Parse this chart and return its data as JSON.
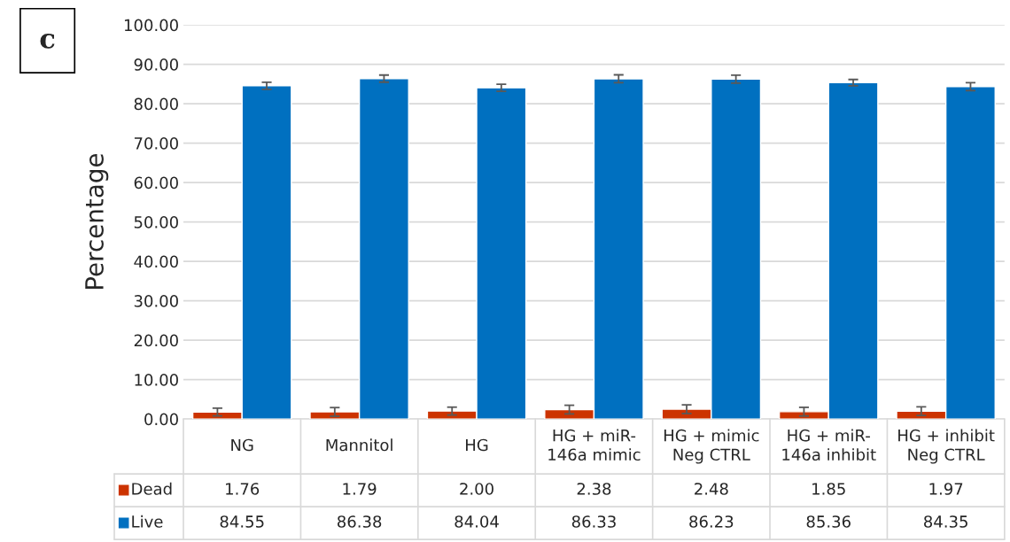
{
  "chart_data": {
    "type": "bar",
    "ylabel": "Percentage",
    "categories": [
      "NG",
      "Mannitol",
      "HG",
      "HG + miR-\n146a mimic",
      "HG + mimic\nNeg CTRL",
      "HG + miR-\n146a inhibit",
      "HG + inhibit\nNeg CTRL"
    ],
    "series": [
      {
        "name": "Dead",
        "color": "#cc3300",
        "values": [
          1.76,
          1.79,
          2.0,
          2.38,
          2.48,
          1.85,
          1.97
        ],
        "errors": [
          1.0,
          1.1,
          1.0,
          1.1,
          1.1,
          1.1,
          1.1
        ],
        "value_labels": [
          "1.76",
          "1.79",
          "2.00",
          "2.38",
          "2.48",
          "1.85",
          "1.97"
        ]
      },
      {
        "name": "Live",
        "color": "#0070c0",
        "values": [
          84.55,
          86.38,
          84.04,
          86.33,
          86.23,
          85.36,
          84.35
        ],
        "errors": [
          0.9,
          0.9,
          0.9,
          1.0,
          1.0,
          0.8,
          1.0
        ],
        "value_labels": [
          "84.55",
          "86.38",
          "84.04",
          "86.33",
          "86.23",
          "85.36",
          "84.35"
        ]
      }
    ],
    "ylim": [
      0,
      100
    ],
    "yticks": [
      {
        "value": 0,
        "label": "0.00"
      },
      {
        "value": 10,
        "label": "10.00"
      },
      {
        "value": 20,
        "label": "20.00"
      },
      {
        "value": 30,
        "label": "30.00"
      },
      {
        "value": 40,
        "label": "40.00"
      },
      {
        "value": 50,
        "label": "50.00"
      },
      {
        "value": 60,
        "label": "60.00"
      },
      {
        "value": 70,
        "label": "70.00"
      },
      {
        "value": 80,
        "label": "80.00"
      },
      {
        "value": 90,
        "label": "90.00"
      },
      {
        "value": 100,
        "label": "100.00"
      }
    ],
    "grid": "y",
    "legend": "bottom",
    "annotations": [
      "c"
    ]
  }
}
